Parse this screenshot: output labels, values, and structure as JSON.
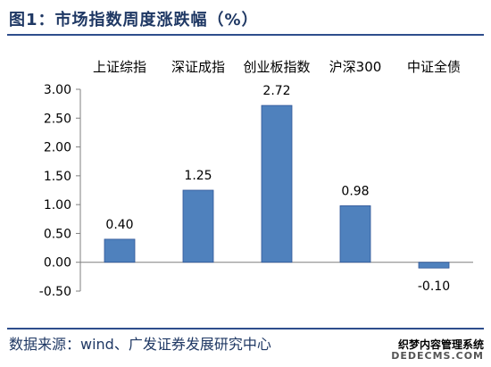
{
  "figure": {
    "title": "图1：市场指数周度涨跌幅（%）",
    "source": "数据来源：wind、广发证券发展研究中心"
  },
  "watermark": {
    "line1": "织梦内容管理系统",
    "line2": "DEDECMS.COM"
  },
  "chart_data": {
    "type": "bar",
    "title": "",
    "categories": [
      "上证综指",
      "深证成指",
      "创业板指数",
      "沪深300",
      "中证全债"
    ],
    "values": [
      0.4,
      1.25,
      2.72,
      0.98,
      -0.1
    ],
    "data_labels": [
      "0.40",
      "1.25",
      "2.72",
      "0.98",
      "-0.10"
    ],
    "ylim": [
      -0.5,
      3.0
    ],
    "yticks": [
      -0.5,
      0.0,
      0.5,
      1.0,
      1.5,
      2.0,
      2.5,
      3.0
    ],
    "ytick_labels": [
      "-0.50",
      "0.00",
      "0.50",
      "1.00",
      "1.50",
      "2.00",
      "2.50",
      "3.00"
    ],
    "category_axis_position": "top",
    "grid": false,
    "legend": "none",
    "bar_color": "#4f81bd",
    "bar_edge_color": "#2f5597",
    "axis_color": "#7f7f7f"
  }
}
